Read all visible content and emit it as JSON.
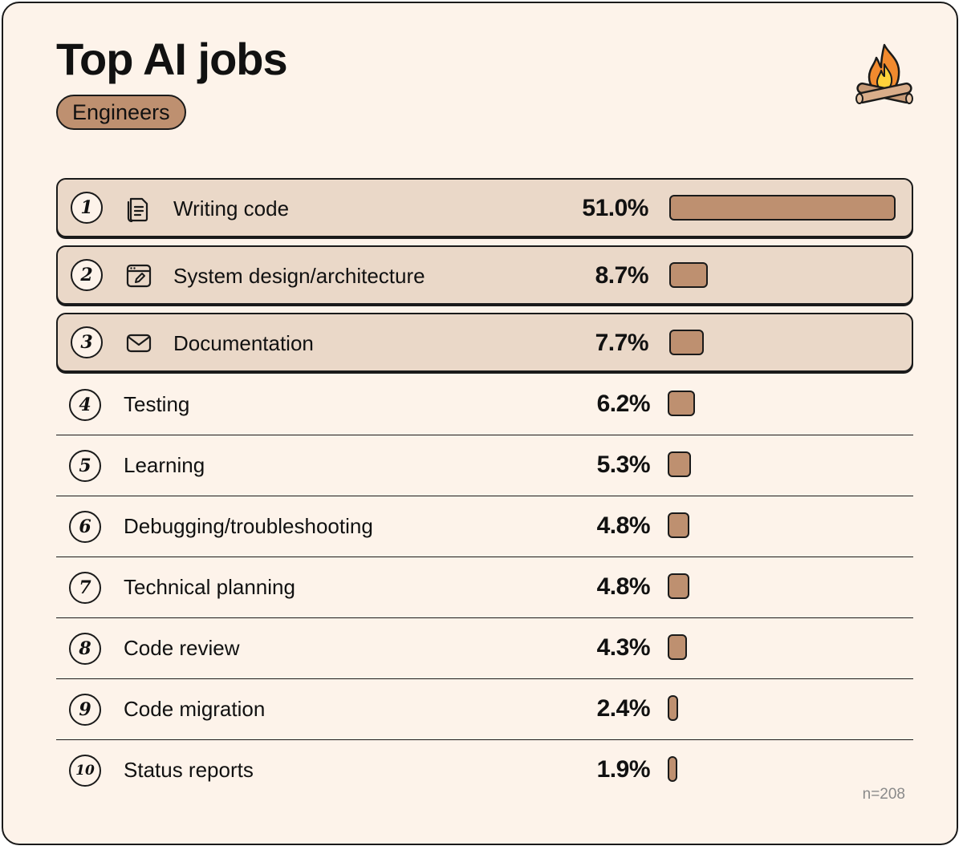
{
  "title": "Top AI jobs",
  "badge": "Engineers",
  "sample_note": "n=208",
  "colors": {
    "background": "#fdf3ea",
    "bar": "#be9070",
    "highlight": "#ead8c8",
    "badge": "#be9070"
  },
  "logo_icon": "campfire-icon",
  "rows": [
    {
      "rank": "1",
      "label": "Writing code",
      "pct": "51.0%",
      "icon": "document-icon"
    },
    {
      "rank": "2",
      "label": "System design/architecture",
      "pct": "8.7%",
      "icon": "browser-edit-icon"
    },
    {
      "rank": "3",
      "label": "Documentation",
      "pct": "7.7%",
      "icon": "envelope-icon"
    },
    {
      "rank": "4",
      "label": "Testing",
      "pct": "6.2%"
    },
    {
      "rank": "5",
      "label": "Learning",
      "pct": "5.3%"
    },
    {
      "rank": "6",
      "label": "Debugging/troubleshooting",
      "pct": "4.8%"
    },
    {
      "rank": "7",
      "label": "Technical planning",
      "pct": "4.8%"
    },
    {
      "rank": "8",
      "label": "Code review",
      "pct": "4.3%"
    },
    {
      "rank": "9",
      "label": "Code migration",
      "pct": "2.4%"
    },
    {
      "rank": "10",
      "label": "Status reports",
      "pct": "1.9%"
    }
  ],
  "chart_data": {
    "type": "bar",
    "orientation": "horizontal",
    "title": "Top AI jobs",
    "subtitle": "Engineers",
    "categories": [
      "Writing code",
      "System design/architecture",
      "Documentation",
      "Testing",
      "Learning",
      "Debugging/troubleshooting",
      "Technical planning",
      "Code review",
      "Code migration",
      "Status reports"
    ],
    "values": [
      51.0,
      8.7,
      7.7,
      6.2,
      5.3,
      4.8,
      4.8,
      4.3,
      2.4,
      1.9
    ],
    "unit": "%",
    "xlim": [
      0,
      51.0
    ],
    "annotations": [
      "n=208"
    ]
  }
}
